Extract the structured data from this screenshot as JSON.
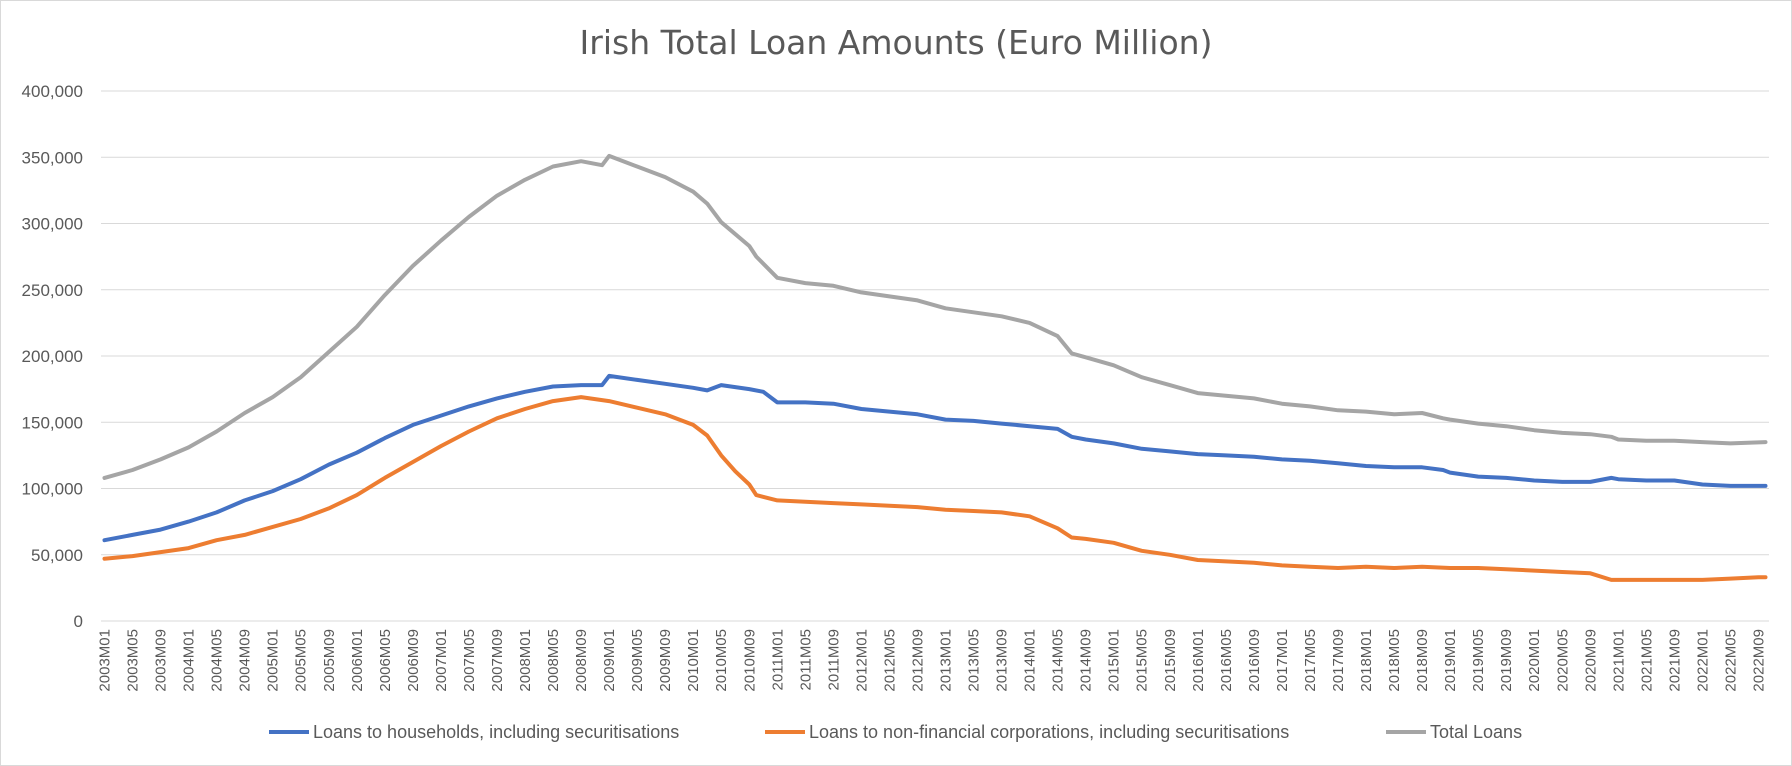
{
  "chart_data": {
    "type": "line",
    "title": "Irish Total Loan Amounts (Euro Million)",
    "xlabel": "",
    "ylabel": "",
    "ylim": [
      0,
      400000
    ],
    "yticks": [
      0,
      50000,
      100000,
      150000,
      200000,
      250000,
      300000,
      350000,
      400000
    ],
    "ytick_labels": [
      "0",
      "50,000",
      "100,000",
      "150,000",
      "200,000",
      "250,000",
      "300,000",
      "350,000",
      "400,000"
    ],
    "grid": true,
    "legend_position": "bottom",
    "x_start": "2003M01",
    "x_end": "2022M10",
    "xtick_labels": [
      "2003M01",
      "2003M05",
      "2003M09",
      "2004M01",
      "2004M05",
      "2004M09",
      "2005M01",
      "2005M05",
      "2005M09",
      "2006M01",
      "2006M05",
      "2006M09",
      "2007M01",
      "2007M05",
      "2007M09",
      "2008M01",
      "2008M05",
      "2008M09",
      "2009M01",
      "2009M05",
      "2009M09",
      "2010M01",
      "2010M05",
      "2010M09",
      "2011M01",
      "2011M05",
      "2011M09",
      "2012M01",
      "2012M05",
      "2012M09",
      "2013M01",
      "2013M05",
      "2013M09",
      "2014M01",
      "2014M05",
      "2014M09",
      "2015M01",
      "2015M05",
      "2015M09",
      "2016M01",
      "2016M05",
      "2016M09",
      "2017M01",
      "2017M05",
      "2017M09",
      "2018M01",
      "2018M05",
      "2018M09",
      "2019M01",
      "2019M05",
      "2019M09",
      "2020M01",
      "2020M05",
      "2020M09",
      "2021M01",
      "2021M05",
      "2021M09",
      "2022M01",
      "2022M05",
      "2022M09"
    ],
    "series": [
      {
        "name": "Loans to households, including securitisations",
        "color": "#4472c4",
        "points": [
          [
            "2003M01",
            61000
          ],
          [
            "2003M05",
            65000
          ],
          [
            "2003M09",
            69000
          ],
          [
            "2004M01",
            75000
          ],
          [
            "2004M05",
            82000
          ],
          [
            "2004M09",
            91000
          ],
          [
            "2005M01",
            98000
          ],
          [
            "2005M05",
            107000
          ],
          [
            "2005M09",
            118000
          ],
          [
            "2006M01",
            127000
          ],
          [
            "2006M05",
            138000
          ],
          [
            "2006M09",
            148000
          ],
          [
            "2007M01",
            155000
          ],
          [
            "2007M05",
            162000
          ],
          [
            "2007M09",
            168000
          ],
          [
            "2008M01",
            173000
          ],
          [
            "2008M05",
            177000
          ],
          [
            "2008M09",
            178000
          ],
          [
            "2008M12",
            178000
          ],
          [
            "2009M01",
            185000
          ],
          [
            "2009M05",
            182000
          ],
          [
            "2009M09",
            179000
          ],
          [
            "2010M01",
            176000
          ],
          [
            "2010M03",
            174000
          ],
          [
            "2010M05",
            178000
          ],
          [
            "2010M09",
            175000
          ],
          [
            "2010M11",
            173000
          ],
          [
            "2011M01",
            165000
          ],
          [
            "2011M05",
            165000
          ],
          [
            "2011M09",
            164000
          ],
          [
            "2012M01",
            160000
          ],
          [
            "2012M05",
            158000
          ],
          [
            "2012M09",
            156000
          ],
          [
            "2013M01",
            152000
          ],
          [
            "2013M05",
            151000
          ],
          [
            "2013M09",
            149000
          ],
          [
            "2014M01",
            147000
          ],
          [
            "2014M05",
            145000
          ],
          [
            "2014M07",
            139000
          ],
          [
            "2014M09",
            137000
          ],
          [
            "2015M01",
            134000
          ],
          [
            "2015M05",
            130000
          ],
          [
            "2015M09",
            128000
          ],
          [
            "2016M01",
            126000
          ],
          [
            "2016M05",
            125000
          ],
          [
            "2016M09",
            124000
          ],
          [
            "2017M01",
            122000
          ],
          [
            "2017M05",
            121000
          ],
          [
            "2017M09",
            119000
          ],
          [
            "2018M01",
            117000
          ],
          [
            "2018M05",
            116000
          ],
          [
            "2018M09",
            116000
          ],
          [
            "2018M12",
            114000
          ],
          [
            "2019M01",
            112000
          ],
          [
            "2019M05",
            109000
          ],
          [
            "2019M09",
            108000
          ],
          [
            "2020M01",
            106000
          ],
          [
            "2020M05",
            105000
          ],
          [
            "2020M09",
            105000
          ],
          [
            "2020M12",
            108000
          ],
          [
            "2021M01",
            107000
          ],
          [
            "2021M05",
            106000
          ],
          [
            "2021M09",
            106000
          ],
          [
            "2022M01",
            103000
          ],
          [
            "2022M05",
            102000
          ],
          [
            "2022M10",
            102000
          ]
        ]
      },
      {
        "name": "Loans to non-financial corporations, including securitisations",
        "color": "#ed7d31",
        "points": [
          [
            "2003M01",
            47000
          ],
          [
            "2003M05",
            49000
          ],
          [
            "2003M09",
            52000
          ],
          [
            "2004M01",
            55000
          ],
          [
            "2004M05",
            61000
          ],
          [
            "2004M09",
            65000
          ],
          [
            "2005M01",
            71000
          ],
          [
            "2005M05",
            77000
          ],
          [
            "2005M09",
            85000
          ],
          [
            "2006M01",
            95000
          ],
          [
            "2006M05",
            108000
          ],
          [
            "2006M09",
            120000
          ],
          [
            "2007M01",
            132000
          ],
          [
            "2007M05",
            143000
          ],
          [
            "2007M09",
            153000
          ],
          [
            "2008M01",
            160000
          ],
          [
            "2008M05",
            166000
          ],
          [
            "2008M09",
            169000
          ],
          [
            "2009M01",
            166000
          ],
          [
            "2009M05",
            161000
          ],
          [
            "2009M09",
            156000
          ],
          [
            "2010M01",
            148000
          ],
          [
            "2010M03",
            140000
          ],
          [
            "2010M05",
            125000
          ],
          [
            "2010M07",
            113000
          ],
          [
            "2010M09",
            103000
          ],
          [
            "2010M10",
            95000
          ],
          [
            "2011M01",
            91000
          ],
          [
            "2011M05",
            90000
          ],
          [
            "2011M09",
            89000
          ],
          [
            "2012M01",
            88000
          ],
          [
            "2012M05",
            87000
          ],
          [
            "2012M09",
            86000
          ],
          [
            "2013M01",
            84000
          ],
          [
            "2013M05",
            83000
          ],
          [
            "2013M09",
            82000
          ],
          [
            "2014M01",
            79000
          ],
          [
            "2014M05",
            70000
          ],
          [
            "2014M07",
            63000
          ],
          [
            "2014M09",
            62000
          ],
          [
            "2015M01",
            59000
          ],
          [
            "2015M05",
            53000
          ],
          [
            "2015M09",
            50000
          ],
          [
            "2016M01",
            46000
          ],
          [
            "2016M05",
            45000
          ],
          [
            "2016M09",
            44000
          ],
          [
            "2017M01",
            42000
          ],
          [
            "2017M05",
            41000
          ],
          [
            "2017M09",
            40000
          ],
          [
            "2018M01",
            41000
          ],
          [
            "2018M05",
            40000
          ],
          [
            "2018M09",
            41000
          ],
          [
            "2019M01",
            40000
          ],
          [
            "2019M05",
            40000
          ],
          [
            "2019M09",
            39000
          ],
          [
            "2020M01",
            38000
          ],
          [
            "2020M05",
            37000
          ],
          [
            "2020M09",
            36000
          ],
          [
            "2020M12",
            31000
          ],
          [
            "2021M01",
            31000
          ],
          [
            "2021M05",
            31000
          ],
          [
            "2021M09",
            31000
          ],
          [
            "2022M01",
            31000
          ],
          [
            "2022M05",
            32000
          ],
          [
            "2022M09",
            33000
          ],
          [
            "2022M10",
            33000
          ]
        ]
      },
      {
        "name": "Total Loans",
        "color": "#a5a5a5",
        "points": [
          [
            "2003M01",
            108000
          ],
          [
            "2003M05",
            114000
          ],
          [
            "2003M09",
            122000
          ],
          [
            "2004M01",
            131000
          ],
          [
            "2004M05",
            143000
          ],
          [
            "2004M09",
            157000
          ],
          [
            "2005M01",
            169000
          ],
          [
            "2005M05",
            184000
          ],
          [
            "2005M09",
            203000
          ],
          [
            "2006M01",
            222000
          ],
          [
            "2006M05",
            246000
          ],
          [
            "2006M09",
            268000
          ],
          [
            "2007M01",
            287000
          ],
          [
            "2007M05",
            305000
          ],
          [
            "2007M09",
            321000
          ],
          [
            "2008M01",
            333000
          ],
          [
            "2008M05",
            343000
          ],
          [
            "2008M09",
            347000
          ],
          [
            "2008M12",
            344000
          ],
          [
            "2009M01",
            351000
          ],
          [
            "2009M05",
            343000
          ],
          [
            "2009M09",
            335000
          ],
          [
            "2010M01",
            324000
          ],
          [
            "2010M03",
            315000
          ],
          [
            "2010M05",
            301000
          ],
          [
            "2010M09",
            283000
          ],
          [
            "2010M10",
            275000
          ],
          [
            "2011M01",
            259000
          ],
          [
            "2011M05",
            255000
          ],
          [
            "2011M09",
            253000
          ],
          [
            "2012M01",
            248000
          ],
          [
            "2012M05",
            245000
          ],
          [
            "2012M09",
            242000
          ],
          [
            "2013M01",
            236000
          ],
          [
            "2013M05",
            233000
          ],
          [
            "2013M09",
            230000
          ],
          [
            "2014M01",
            225000
          ],
          [
            "2014M05",
            215000
          ],
          [
            "2014M07",
            202000
          ],
          [
            "2014M09",
            199000
          ],
          [
            "2015M01",
            193000
          ],
          [
            "2015M05",
            184000
          ],
          [
            "2015M09",
            178000
          ],
          [
            "2016M01",
            172000
          ],
          [
            "2016M05",
            170000
          ],
          [
            "2016M09",
            168000
          ],
          [
            "2017M01",
            164000
          ],
          [
            "2017M05",
            162000
          ],
          [
            "2017M09",
            159000
          ],
          [
            "2018M01",
            158000
          ],
          [
            "2018M05",
            156000
          ],
          [
            "2018M09",
            157000
          ],
          [
            "2018M12",
            153000
          ],
          [
            "2019M01",
            152000
          ],
          [
            "2019M05",
            149000
          ],
          [
            "2019M09",
            147000
          ],
          [
            "2020M01",
            144000
          ],
          [
            "2020M05",
            142000
          ],
          [
            "2020M09",
            141000
          ],
          [
            "2020M12",
            139000
          ],
          [
            "2021M01",
            137000
          ],
          [
            "2021M05",
            136000
          ],
          [
            "2021M09",
            136000
          ],
          [
            "2022M01",
            135000
          ],
          [
            "2022M05",
            134000
          ],
          [
            "2022M10",
            135000
          ]
        ]
      }
    ]
  }
}
